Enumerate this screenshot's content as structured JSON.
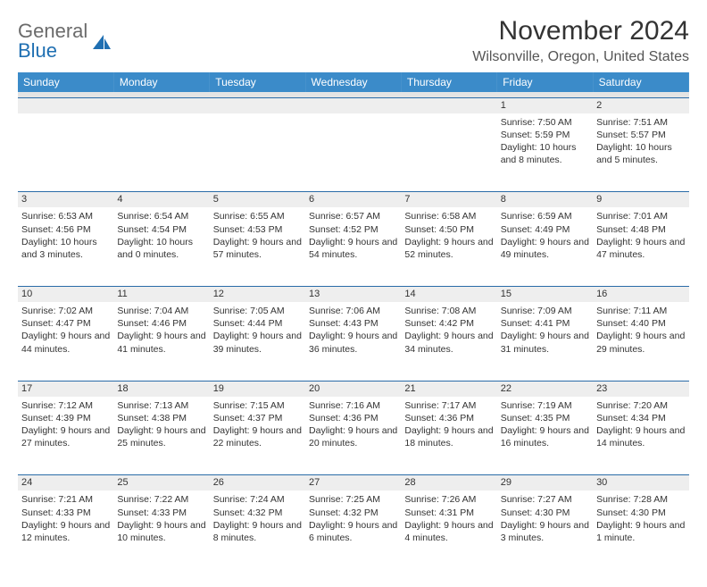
{
  "brand": {
    "line1": "General",
    "line2": "Blue"
  },
  "title": "November 2024",
  "location": "Wilsonville, Oregon, United States",
  "colors": {
    "header_bg": "#3b8bc9",
    "header_fg": "#ffffff",
    "grid_line": "#2a6ca8",
    "daynum_bg": "#eeeeee",
    "spacer_bg": "#e4e4e4",
    "text": "#333333",
    "brand_gray": "#6b6b6b",
    "brand_blue": "#1f6fb2"
  },
  "day_headers": [
    "Sunday",
    "Monday",
    "Tuesday",
    "Wednesday",
    "Thursday",
    "Friday",
    "Saturday"
  ],
  "weeks": [
    [
      null,
      null,
      null,
      null,
      null,
      {
        "n": "1",
        "sunrise": "Sunrise: 7:50 AM",
        "sunset": "Sunset: 5:59 PM",
        "daylight": "Daylight: 10 hours and 8 minutes."
      },
      {
        "n": "2",
        "sunrise": "Sunrise: 7:51 AM",
        "sunset": "Sunset: 5:57 PM",
        "daylight": "Daylight: 10 hours and 5 minutes."
      }
    ],
    [
      {
        "n": "3",
        "sunrise": "Sunrise: 6:53 AM",
        "sunset": "Sunset: 4:56 PM",
        "daylight": "Daylight: 10 hours and 3 minutes."
      },
      {
        "n": "4",
        "sunrise": "Sunrise: 6:54 AM",
        "sunset": "Sunset: 4:54 PM",
        "daylight": "Daylight: 10 hours and 0 minutes."
      },
      {
        "n": "5",
        "sunrise": "Sunrise: 6:55 AM",
        "sunset": "Sunset: 4:53 PM",
        "daylight": "Daylight: 9 hours and 57 minutes."
      },
      {
        "n": "6",
        "sunrise": "Sunrise: 6:57 AM",
        "sunset": "Sunset: 4:52 PM",
        "daylight": "Daylight: 9 hours and 54 minutes."
      },
      {
        "n": "7",
        "sunrise": "Sunrise: 6:58 AM",
        "sunset": "Sunset: 4:50 PM",
        "daylight": "Daylight: 9 hours and 52 minutes."
      },
      {
        "n": "8",
        "sunrise": "Sunrise: 6:59 AM",
        "sunset": "Sunset: 4:49 PM",
        "daylight": "Daylight: 9 hours and 49 minutes."
      },
      {
        "n": "9",
        "sunrise": "Sunrise: 7:01 AM",
        "sunset": "Sunset: 4:48 PM",
        "daylight": "Daylight: 9 hours and 47 minutes."
      }
    ],
    [
      {
        "n": "10",
        "sunrise": "Sunrise: 7:02 AM",
        "sunset": "Sunset: 4:47 PM",
        "daylight": "Daylight: 9 hours and 44 minutes."
      },
      {
        "n": "11",
        "sunrise": "Sunrise: 7:04 AM",
        "sunset": "Sunset: 4:46 PM",
        "daylight": "Daylight: 9 hours and 41 minutes."
      },
      {
        "n": "12",
        "sunrise": "Sunrise: 7:05 AM",
        "sunset": "Sunset: 4:44 PM",
        "daylight": "Daylight: 9 hours and 39 minutes."
      },
      {
        "n": "13",
        "sunrise": "Sunrise: 7:06 AM",
        "sunset": "Sunset: 4:43 PM",
        "daylight": "Daylight: 9 hours and 36 minutes."
      },
      {
        "n": "14",
        "sunrise": "Sunrise: 7:08 AM",
        "sunset": "Sunset: 4:42 PM",
        "daylight": "Daylight: 9 hours and 34 minutes."
      },
      {
        "n": "15",
        "sunrise": "Sunrise: 7:09 AM",
        "sunset": "Sunset: 4:41 PM",
        "daylight": "Daylight: 9 hours and 31 minutes."
      },
      {
        "n": "16",
        "sunrise": "Sunrise: 7:11 AM",
        "sunset": "Sunset: 4:40 PM",
        "daylight": "Daylight: 9 hours and 29 minutes."
      }
    ],
    [
      {
        "n": "17",
        "sunrise": "Sunrise: 7:12 AM",
        "sunset": "Sunset: 4:39 PM",
        "daylight": "Daylight: 9 hours and 27 minutes."
      },
      {
        "n": "18",
        "sunrise": "Sunrise: 7:13 AM",
        "sunset": "Sunset: 4:38 PM",
        "daylight": "Daylight: 9 hours and 25 minutes."
      },
      {
        "n": "19",
        "sunrise": "Sunrise: 7:15 AM",
        "sunset": "Sunset: 4:37 PM",
        "daylight": "Daylight: 9 hours and 22 minutes."
      },
      {
        "n": "20",
        "sunrise": "Sunrise: 7:16 AM",
        "sunset": "Sunset: 4:36 PM",
        "daylight": "Daylight: 9 hours and 20 minutes."
      },
      {
        "n": "21",
        "sunrise": "Sunrise: 7:17 AM",
        "sunset": "Sunset: 4:36 PM",
        "daylight": "Daylight: 9 hours and 18 minutes."
      },
      {
        "n": "22",
        "sunrise": "Sunrise: 7:19 AM",
        "sunset": "Sunset: 4:35 PM",
        "daylight": "Daylight: 9 hours and 16 minutes."
      },
      {
        "n": "23",
        "sunrise": "Sunrise: 7:20 AM",
        "sunset": "Sunset: 4:34 PM",
        "daylight": "Daylight: 9 hours and 14 minutes."
      }
    ],
    [
      {
        "n": "24",
        "sunrise": "Sunrise: 7:21 AM",
        "sunset": "Sunset: 4:33 PM",
        "daylight": "Daylight: 9 hours and 12 minutes."
      },
      {
        "n": "25",
        "sunrise": "Sunrise: 7:22 AM",
        "sunset": "Sunset: 4:33 PM",
        "daylight": "Daylight: 9 hours and 10 minutes."
      },
      {
        "n": "26",
        "sunrise": "Sunrise: 7:24 AM",
        "sunset": "Sunset: 4:32 PM",
        "daylight": "Daylight: 9 hours and 8 minutes."
      },
      {
        "n": "27",
        "sunrise": "Sunrise: 7:25 AM",
        "sunset": "Sunset: 4:32 PM",
        "daylight": "Daylight: 9 hours and 6 minutes."
      },
      {
        "n": "28",
        "sunrise": "Sunrise: 7:26 AM",
        "sunset": "Sunset: 4:31 PM",
        "daylight": "Daylight: 9 hours and 4 minutes."
      },
      {
        "n": "29",
        "sunrise": "Sunrise: 7:27 AM",
        "sunset": "Sunset: 4:30 PM",
        "daylight": "Daylight: 9 hours and 3 minutes."
      },
      {
        "n": "30",
        "sunrise": "Sunrise: 7:28 AM",
        "sunset": "Sunset: 4:30 PM",
        "daylight": "Daylight: 9 hours and 1 minute."
      }
    ]
  ]
}
